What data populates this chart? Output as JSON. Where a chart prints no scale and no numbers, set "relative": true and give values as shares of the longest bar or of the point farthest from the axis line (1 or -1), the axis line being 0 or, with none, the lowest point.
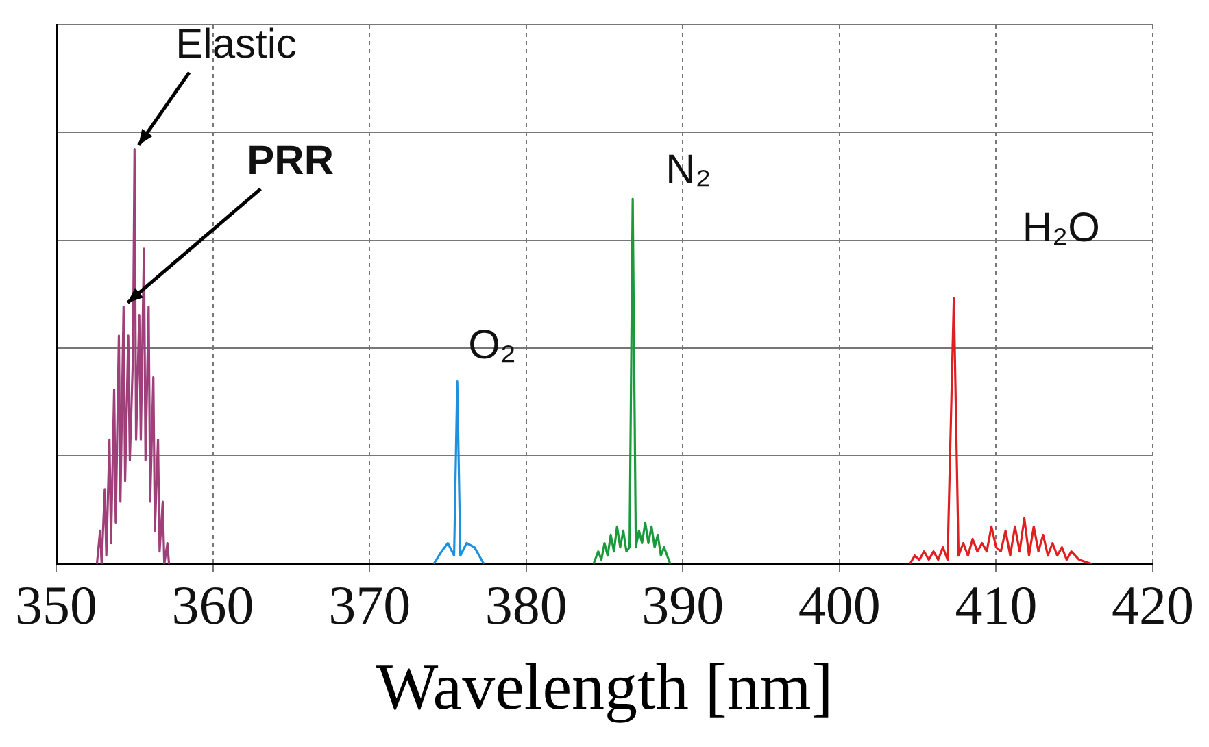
{
  "chart_data": {
    "type": "line",
    "xlabel": "Wavelength [nm]",
    "relative": true,
    "xlim": [
      350,
      420
    ],
    "xticks": [
      350,
      360,
      370,
      380,
      390,
      400,
      410,
      420
    ],
    "grid": true,
    "legend": false,
    "marker": "none",
    "line_style": "solid",
    "series": [
      {
        "color": "#a0407a",
        "x": [
          352.6,
          352.8,
          352.9,
          353.1,
          353.2,
          353.4,
          353.5,
          353.7,
          353.8,
          354.0,
          354.1,
          354.3,
          354.4,
          354.6,
          354.7,
          354.9,
          355.0,
          355.1,
          355.3,
          355.4,
          355.6,
          355.7,
          355.9,
          356.0,
          356.2,
          356.3,
          356.5,
          356.6,
          356.8,
          356.9,
          357.1,
          357.2
        ],
        "values": [
          0,
          0.08,
          0,
          0.18,
          0.02,
          0.3,
          0.05,
          0.42,
          0.1,
          0.55,
          0.15,
          0.62,
          0.2,
          0.55,
          0.25,
          0.5,
          1,
          0.3,
          0.6,
          0.3,
          0.76,
          0.25,
          0.62,
          0.15,
          0.45,
          0.08,
          0.3,
          0.03,
          0.15,
          0,
          0.05,
          0
        ]
      },
      {
        "color": "#1e90e0",
        "x": [
          374.1,
          374.6,
          375.0,
          375.4,
          375.6,
          375.8,
          376.2,
          376.7,
          377.3
        ],
        "values": [
          0,
          0.03,
          0.05,
          0.02,
          0.44,
          0.02,
          0.05,
          0.04,
          0
        ]
      },
      {
        "color": "#1a9a3a",
        "x": [
          384.3,
          384.6,
          384.8,
          385.0,
          385.2,
          385.4,
          385.6,
          385.8,
          386.0,
          386.2,
          386.4,
          386.6,
          386.8,
          387.0,
          387.2,
          387.4,
          387.6,
          387.8,
          388.0,
          388.2,
          388.4,
          388.6,
          388.8,
          389.2
        ],
        "values": [
          0,
          0.03,
          0.01,
          0.05,
          0.02,
          0.07,
          0.03,
          0.09,
          0.04,
          0.08,
          0.03,
          0.04,
          0.88,
          0.04,
          0.08,
          0.05,
          0.1,
          0.05,
          0.09,
          0.04,
          0.07,
          0.02,
          0.04,
          0
        ]
      },
      {
        "color": "#e02020",
        "x": [
          404.5,
          404.8,
          405.1,
          405.4,
          405.7,
          406.0,
          406.3,
          406.6,
          406.9,
          407.3,
          407.6,
          407.9,
          408.2,
          408.5,
          408.8,
          409.1,
          409.4,
          409.7,
          410.0,
          410.3,
          410.6,
          410.9,
          411.2,
          411.5,
          411.8,
          412.1,
          412.4,
          412.7,
          413.0,
          413.3,
          413.6,
          413.9,
          414.2,
          414.5,
          414.8,
          415.3,
          416.1
        ],
        "values": [
          0,
          0.02,
          0.01,
          0.03,
          0.01,
          0.03,
          0.01,
          0.04,
          0.01,
          0.64,
          0.02,
          0.05,
          0.02,
          0.06,
          0.03,
          0.05,
          0.03,
          0.09,
          0.04,
          0.03,
          0.08,
          0.02,
          0.09,
          0.03,
          0.11,
          0.02,
          0.09,
          0.03,
          0.07,
          0.02,
          0.05,
          0.02,
          0.04,
          0.01,
          0.03,
          0.01,
          0
        ]
      }
    ],
    "annotations": [
      {
        "text": "Elastic",
        "x": 355,
        "y": 1
      },
      {
        "text": "PRR",
        "x": 354.3,
        "y": 0.62
      },
      {
        "text": "O₂",
        "x": 375.6,
        "y": 0.44
      },
      {
        "text": "N₂",
        "x": 386.8,
        "y": 0.88
      },
      {
        "text": "H₂O",
        "x": 407.3,
        "y": 0.64
      }
    ]
  }
}
